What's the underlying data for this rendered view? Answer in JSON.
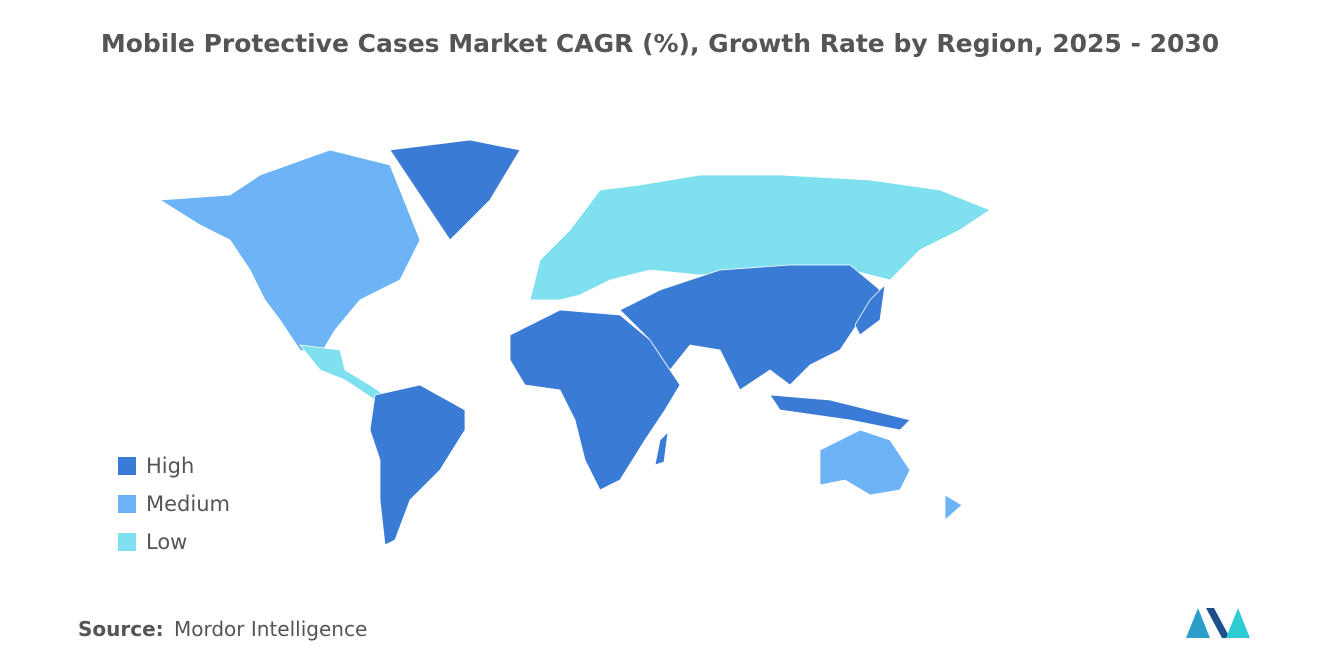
{
  "title": "Mobile Protective Cases Market CAGR (%), Growth Rate by Region, 2025 - 2030",
  "legend": [
    {
      "label": "High",
      "color": "#3a7bd5"
    },
    {
      "label": "Medium",
      "color": "#6cb4f5"
    },
    {
      "label": "Low",
      "color": "#7fe0ef"
    }
  ],
  "source": {
    "label": "Source:",
    "text": "Mordor Intelligence"
  }
}
